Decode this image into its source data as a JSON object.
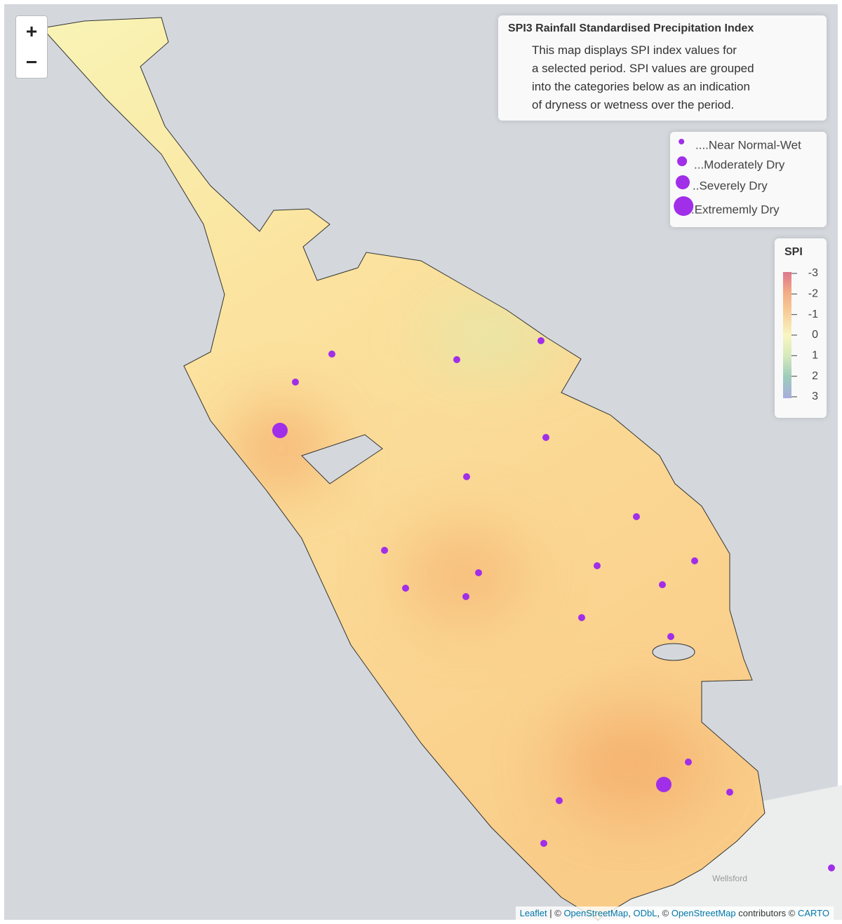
{
  "zoom": {
    "in": "+",
    "out": "−"
  },
  "info": {
    "title": "SPI3 Rainfall Standardised Precipitation Index",
    "lines": [
      "This map displays SPI index values for",
      "a selected period. SPI values are grouped",
      "into the categories below as an indication",
      "of dryness or wetness over the period."
    ]
  },
  "categories": [
    "....Near Normal-Wet",
    "...Moderately Dry",
    "..Severely Dry",
    ".Extrememly Dry"
  ],
  "marker_color": "#a12ee8",
  "spi_legend": {
    "title": "SPI",
    "range": [
      -3,
      3
    ],
    "ticks": [
      -3,
      -2,
      -1,
      0,
      1,
      2,
      3
    ],
    "colors": [
      "#d8607a",
      "#f2a070",
      "#f7c98a",
      "#f9f5b8",
      "#cfe6b0",
      "#8cc4b0",
      "#9aa0d8"
    ]
  },
  "place_label": "Wellsford",
  "attribution": [
    "Leaflet",
    " | © ",
    "OpenStreetMap",
    ", ",
    "ODbL",
    ", © ",
    "OpenStreetMap",
    " contributors © ",
    "CARTO"
  ]
}
